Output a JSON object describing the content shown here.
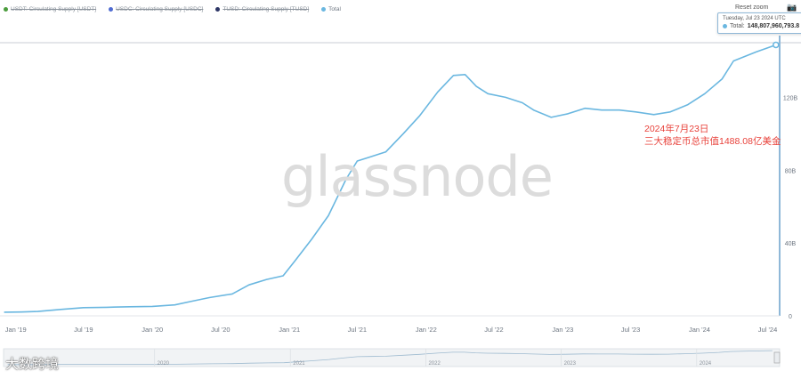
{
  "legend": [
    {
      "label": "USDT: Circulating Supply [USDT]",
      "color": "#4a9c3c",
      "enabled": false
    },
    {
      "label": "USDC: Circulating Supply [USDC]",
      "color": "#4f6bd2",
      "enabled": false
    },
    {
      "label": "TUSD: Circulating Supply [TUSD]",
      "color": "#2c3565",
      "enabled": false
    },
    {
      "label": "Total",
      "color": "#6ab7e0",
      "enabled": true
    }
  ],
  "toolbar": {
    "reset_zoom": "Reset zoom",
    "camera_icon": "camera-icon"
  },
  "tooltip": {
    "date": "Tuesday, Jul 23 2024 UTC",
    "series": "Total:",
    "value": "148,807,960,793.8"
  },
  "annotation": {
    "line1": "2024年7月23日",
    "line2": "三大稳定币总市值1488.08亿美金"
  },
  "watermark": "glassnode",
  "brand": "大数跨境",
  "navigator_labels": [
    "2020",
    "2021",
    "2022",
    "2023",
    "2024"
  ],
  "chart_data": {
    "type": "line",
    "title": "",
    "xlabel": "",
    "ylabel": "",
    "x_ticks": [
      "Jan '19",
      "Jul '19",
      "Jan '20",
      "Jul '20",
      "Jan '21",
      "Jul '21",
      "Jan '22",
      "Jul '22",
      "Jan '23",
      "Jul '23",
      "Jan '24",
      "Jul '24"
    ],
    "y_ticks": [
      "0",
      "40B",
      "80B",
      "120B"
    ],
    "ylim": [
      0,
      150
    ],
    "y_unit": "B",
    "grid": true,
    "legend_position": "top-left",
    "series": [
      {
        "name": "Total",
        "color": "#6ab7e0",
        "points": [
          [
            "2018-12-01",
            2.0
          ],
          [
            "2019-01-15",
            2.1
          ],
          [
            "2019-03-01",
            2.4
          ],
          [
            "2019-05-01",
            3.5
          ],
          [
            "2019-07-01",
            4.5
          ],
          [
            "2019-09-01",
            4.7
          ],
          [
            "2019-11-01",
            5.0
          ],
          [
            "2020-01-01",
            5.2
          ],
          [
            "2020-03-01",
            6.0
          ],
          [
            "2020-04-15",
            8.0
          ],
          [
            "2020-06-01",
            10.0
          ],
          [
            "2020-08-01",
            12.0
          ],
          [
            "2020-09-15",
            17.0
          ],
          [
            "2020-11-01",
            20.0
          ],
          [
            "2020-12-15",
            22.0
          ],
          [
            "2021-01-15",
            30.0
          ],
          [
            "2021-03-01",
            42.0
          ],
          [
            "2021-04-15",
            55.0
          ],
          [
            "2021-06-01",
            75.0
          ],
          [
            "2021-07-01",
            85.0
          ],
          [
            "2021-08-01",
            87.0
          ],
          [
            "2021-09-15",
            90.0
          ],
          [
            "2021-11-01",
            100.0
          ],
          [
            "2021-12-15",
            110.0
          ],
          [
            "2022-02-01",
            123.0
          ],
          [
            "2022-03-15",
            132.0
          ],
          [
            "2022-04-15",
            132.5
          ],
          [
            "2022-05-15",
            126.0
          ],
          [
            "2022-06-15",
            122.0
          ],
          [
            "2022-08-01",
            120.0
          ],
          [
            "2022-09-15",
            117.0
          ],
          [
            "2022-10-15",
            113.0
          ],
          [
            "2022-12-01",
            109.0
          ],
          [
            "2023-01-15",
            111.0
          ],
          [
            "2023-03-01",
            114.0
          ],
          [
            "2023-04-15",
            113.0
          ],
          [
            "2023-06-01",
            113.0
          ],
          [
            "2023-07-15",
            112.0
          ],
          [
            "2023-09-01",
            110.5
          ],
          [
            "2023-10-15",
            112.0
          ],
          [
            "2023-12-01",
            116.0
          ],
          [
            "2024-01-15",
            122.0
          ],
          [
            "2024-03-01",
            130.0
          ],
          [
            "2024-04-01",
            140.0
          ],
          [
            "2024-06-01",
            145.0
          ],
          [
            "2024-07-23",
            148.8
          ]
        ]
      }
    ]
  }
}
